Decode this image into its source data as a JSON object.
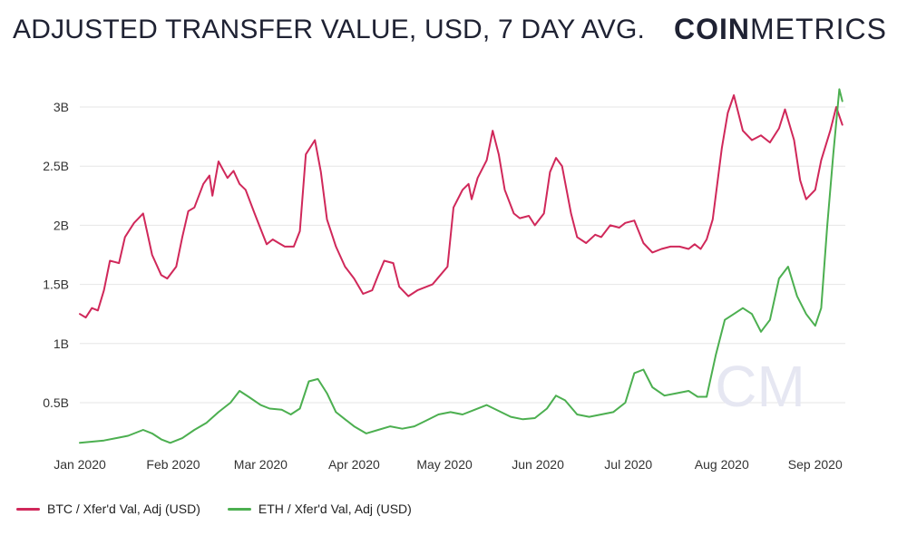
{
  "header": {
    "title": "ADJUSTED TRANSFER VALUE, USD, 7 DAY AVG.",
    "brand_bold": "COIN",
    "brand_light": "METRICS"
  },
  "watermark": "CM",
  "colors": {
    "btc": "#d0285a",
    "eth": "#4caf50",
    "grid": "#e6e6e6",
    "watermark": "#e6e7f2"
  },
  "chart_data": {
    "type": "line",
    "title": "ADJUSTED TRANSFER VALUE, USD, 7 DAY AVG.",
    "x_ticks": [
      "Jan 2020",
      "Feb 2020",
      "Mar 2020",
      "Apr 2020",
      "May 2020",
      "Jun 2020",
      "Jul 2020",
      "Aug 2020",
      "Sep 2020"
    ],
    "y_ticks": [
      "3B",
      "2.5B",
      "2B",
      "1.5B",
      "1B",
      "0.5B"
    ],
    "ylim": [
      0,
      3.2
    ],
    "y_unit": "B USD",
    "grid": true,
    "legend_position": "bottom-left",
    "series": [
      {
        "name": "BTC / Xfer'd Val, Adj (USD)",
        "color": "#d0285a",
        "points": [
          [
            "2020-01-01",
            1.25
          ],
          [
            "2020-01-03",
            1.22
          ],
          [
            "2020-01-05",
            1.3
          ],
          [
            "2020-01-07",
            1.28
          ],
          [
            "2020-01-09",
            1.45
          ],
          [
            "2020-01-11",
            1.7
          ],
          [
            "2020-01-14",
            1.68
          ],
          [
            "2020-01-16",
            1.9
          ],
          [
            "2020-01-19",
            2.02
          ],
          [
            "2020-01-22",
            2.1
          ],
          [
            "2020-01-25",
            1.75
          ],
          [
            "2020-01-28",
            1.58
          ],
          [
            "2020-01-30",
            1.55
          ],
          [
            "2020-02-02",
            1.65
          ],
          [
            "2020-02-04",
            1.9
          ],
          [
            "2020-02-06",
            2.12
          ],
          [
            "2020-02-08",
            2.15
          ],
          [
            "2020-02-11",
            2.35
          ],
          [
            "2020-02-13",
            2.42
          ],
          [
            "2020-02-14",
            2.25
          ],
          [
            "2020-02-16",
            2.54
          ],
          [
            "2020-02-19",
            2.4
          ],
          [
            "2020-02-21",
            2.46
          ],
          [
            "2020-02-23",
            2.35
          ],
          [
            "2020-02-25",
            2.3
          ],
          [
            "2020-02-28",
            2.1
          ],
          [
            "2020-03-03",
            1.84
          ],
          [
            "2020-03-05",
            1.88
          ],
          [
            "2020-03-07",
            1.85
          ],
          [
            "2020-03-09",
            1.82
          ],
          [
            "2020-03-12",
            1.82
          ],
          [
            "2020-03-14",
            1.95
          ],
          [
            "2020-03-16",
            2.6
          ],
          [
            "2020-03-19",
            2.72
          ],
          [
            "2020-03-21",
            2.45
          ],
          [
            "2020-03-23",
            2.05
          ],
          [
            "2020-03-26",
            1.82
          ],
          [
            "2020-03-29",
            1.65
          ],
          [
            "2020-04-01",
            1.55
          ],
          [
            "2020-04-04",
            1.42
          ],
          [
            "2020-04-07",
            1.45
          ],
          [
            "2020-04-09",
            1.58
          ],
          [
            "2020-04-11",
            1.7
          ],
          [
            "2020-04-14",
            1.68
          ],
          [
            "2020-04-16",
            1.48
          ],
          [
            "2020-04-19",
            1.4
          ],
          [
            "2020-04-22",
            1.45
          ],
          [
            "2020-04-25",
            1.48
          ],
          [
            "2020-04-27",
            1.5
          ],
          [
            "2020-04-29",
            1.56
          ],
          [
            "2020-05-02",
            1.65
          ],
          [
            "2020-05-04",
            2.15
          ],
          [
            "2020-05-07",
            2.3
          ],
          [
            "2020-05-09",
            2.35
          ],
          [
            "2020-05-10",
            2.22
          ],
          [
            "2020-05-12",
            2.4
          ],
          [
            "2020-05-15",
            2.55
          ],
          [
            "2020-05-17",
            2.8
          ],
          [
            "2020-05-19",
            2.6
          ],
          [
            "2020-05-21",
            2.3
          ],
          [
            "2020-05-24",
            2.1
          ],
          [
            "2020-05-26",
            2.06
          ],
          [
            "2020-05-29",
            2.08
          ],
          [
            "2020-05-31",
            2.0
          ],
          [
            "2020-06-03",
            2.1
          ],
          [
            "2020-06-05",
            2.45
          ],
          [
            "2020-06-07",
            2.57
          ],
          [
            "2020-06-09",
            2.5
          ],
          [
            "2020-06-12",
            2.1
          ],
          [
            "2020-06-14",
            1.9
          ],
          [
            "2020-06-17",
            1.85
          ],
          [
            "2020-06-20",
            1.92
          ],
          [
            "2020-06-22",
            1.9
          ],
          [
            "2020-06-25",
            2.0
          ],
          [
            "2020-06-28",
            1.98
          ],
          [
            "2020-06-30",
            2.02
          ],
          [
            "2020-07-03",
            2.04
          ],
          [
            "2020-07-06",
            1.85
          ],
          [
            "2020-07-09",
            1.77
          ],
          [
            "2020-07-12",
            1.8
          ],
          [
            "2020-07-15",
            1.82
          ],
          [
            "2020-07-18",
            1.82
          ],
          [
            "2020-07-21",
            1.8
          ],
          [
            "2020-07-23",
            1.84
          ],
          [
            "2020-07-25",
            1.8
          ],
          [
            "2020-07-27",
            1.88
          ],
          [
            "2020-07-29",
            2.05
          ],
          [
            "2020-08-01",
            2.65
          ],
          [
            "2020-08-03",
            2.95
          ],
          [
            "2020-08-05",
            3.1
          ],
          [
            "2020-08-08",
            2.8
          ],
          [
            "2020-08-11",
            2.72
          ],
          [
            "2020-08-14",
            2.76
          ],
          [
            "2020-08-17",
            2.7
          ],
          [
            "2020-08-20",
            2.82
          ],
          [
            "2020-08-22",
            2.98
          ],
          [
            "2020-08-25",
            2.72
          ],
          [
            "2020-08-27",
            2.38
          ],
          [
            "2020-08-29",
            2.22
          ],
          [
            "2020-09-01",
            2.3
          ],
          [
            "2020-09-03",
            2.55
          ],
          [
            "2020-09-06",
            2.8
          ],
          [
            "2020-09-08",
            3.0
          ],
          [
            "2020-09-10",
            2.85
          ]
        ]
      },
      {
        "name": "ETH / Xfer'd Val, Adj (USD)",
        "color": "#4caf50",
        "points": [
          [
            "2020-01-01",
            0.16
          ],
          [
            "2020-01-05",
            0.17
          ],
          [
            "2020-01-09",
            0.18
          ],
          [
            "2020-01-13",
            0.2
          ],
          [
            "2020-01-17",
            0.22
          ],
          [
            "2020-01-22",
            0.27
          ],
          [
            "2020-01-25",
            0.24
          ],
          [
            "2020-01-28",
            0.19
          ],
          [
            "2020-01-31",
            0.16
          ],
          [
            "2020-02-04",
            0.2
          ],
          [
            "2020-02-08",
            0.27
          ],
          [
            "2020-02-12",
            0.33
          ],
          [
            "2020-02-16",
            0.42
          ],
          [
            "2020-02-20",
            0.5
          ],
          [
            "2020-02-23",
            0.6
          ],
          [
            "2020-02-26",
            0.55
          ],
          [
            "2020-03-01",
            0.48
          ],
          [
            "2020-03-04",
            0.45
          ],
          [
            "2020-03-08",
            0.44
          ],
          [
            "2020-03-11",
            0.4
          ],
          [
            "2020-03-14",
            0.45
          ],
          [
            "2020-03-17",
            0.68
          ],
          [
            "2020-03-20",
            0.7
          ],
          [
            "2020-03-23",
            0.58
          ],
          [
            "2020-03-26",
            0.42
          ],
          [
            "2020-03-29",
            0.36
          ],
          [
            "2020-04-01",
            0.3
          ],
          [
            "2020-04-05",
            0.24
          ],
          [
            "2020-04-09",
            0.27
          ],
          [
            "2020-04-13",
            0.3
          ],
          [
            "2020-04-17",
            0.28
          ],
          [
            "2020-04-21",
            0.3
          ],
          [
            "2020-04-25",
            0.35
          ],
          [
            "2020-04-29",
            0.4
          ],
          [
            "2020-05-03",
            0.42
          ],
          [
            "2020-05-07",
            0.4
          ],
          [
            "2020-05-11",
            0.44
          ],
          [
            "2020-05-15",
            0.48
          ],
          [
            "2020-05-19",
            0.43
          ],
          [
            "2020-05-23",
            0.38
          ],
          [
            "2020-05-27",
            0.36
          ],
          [
            "2020-05-31",
            0.37
          ],
          [
            "2020-06-04",
            0.45
          ],
          [
            "2020-06-07",
            0.56
          ],
          [
            "2020-06-10",
            0.52
          ],
          [
            "2020-06-14",
            0.4
          ],
          [
            "2020-06-18",
            0.38
          ],
          [
            "2020-06-22",
            0.4
          ],
          [
            "2020-06-26",
            0.42
          ],
          [
            "2020-06-30",
            0.5
          ],
          [
            "2020-07-03",
            0.75
          ],
          [
            "2020-07-06",
            0.78
          ],
          [
            "2020-07-09",
            0.63
          ],
          [
            "2020-07-13",
            0.56
          ],
          [
            "2020-07-17",
            0.58
          ],
          [
            "2020-07-21",
            0.6
          ],
          [
            "2020-07-24",
            0.55
          ],
          [
            "2020-07-27",
            0.55
          ],
          [
            "2020-07-30",
            0.9
          ],
          [
            "2020-08-02",
            1.2
          ],
          [
            "2020-08-05",
            1.25
          ],
          [
            "2020-08-08",
            1.3
          ],
          [
            "2020-08-11",
            1.25
          ],
          [
            "2020-08-14",
            1.1
          ],
          [
            "2020-08-17",
            1.2
          ],
          [
            "2020-08-20",
            1.55
          ],
          [
            "2020-08-23",
            1.65
          ],
          [
            "2020-08-26",
            1.4
          ],
          [
            "2020-08-29",
            1.25
          ],
          [
            "2020-09-01",
            1.15
          ],
          [
            "2020-09-03",
            1.3
          ],
          [
            "2020-09-05",
            2.0
          ],
          [
            "2020-09-07",
            2.6
          ],
          [
            "2020-09-09",
            3.15
          ],
          [
            "2020-09-10",
            3.05
          ]
        ]
      }
    ]
  }
}
